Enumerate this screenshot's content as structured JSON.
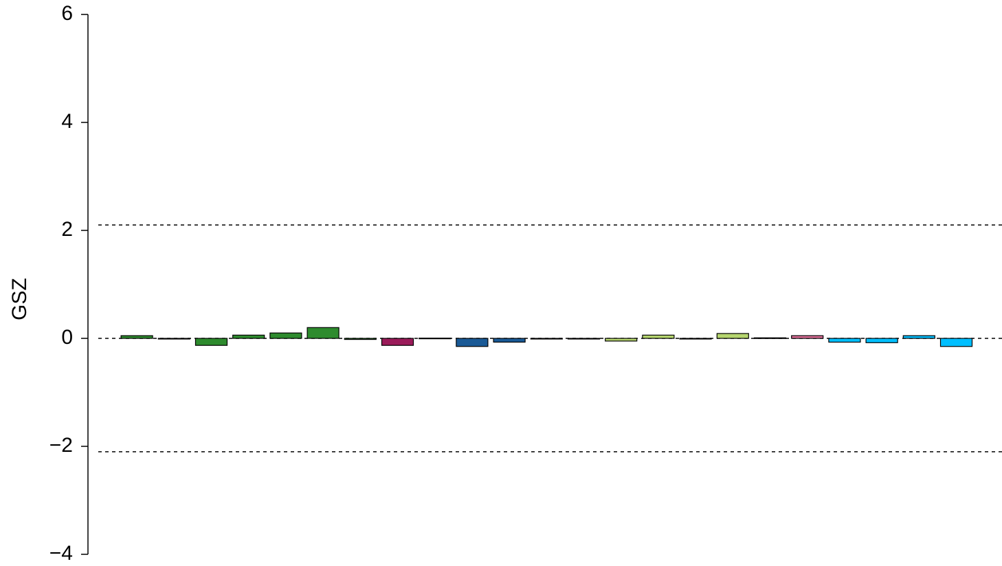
{
  "chart_data": {
    "type": "bar",
    "y_label": "GSZ",
    "categories": [
      null,
      null,
      null,
      null,
      null,
      null,
      null,
      null,
      null,
      null,
      null,
      null,
      null,
      null,
      null,
      null,
      null,
      null,
      null,
      null,
      null,
      null,
      null
    ],
    "values": [
      0.05,
      -0.01,
      -0.13,
      0.06,
      0.1,
      0.2,
      -0.02,
      -0.13,
      0.005,
      -0.15,
      -0.07,
      -0.01,
      -0.01,
      -0.05,
      0.06,
      -0.01,
      0.09,
      0.01,
      0.05,
      -0.07,
      -0.08,
      0.05,
      -0.15
    ],
    "colors": [
      "#2e8b2e",
      "#2e8b2e",
      "#2e8b2e",
      "#2e8b2e",
      "#2e8b2e",
      "#2e8b2e",
      "#2e8b2e",
      "#9b1b5a",
      "#9b1b5a",
      "#1a5a96",
      "#1a5a96",
      "#1a5a96",
      "#1a5a96",
      "#b5d56e",
      "#b5d56e",
      "#b5d56e",
      "#b5d56e",
      "#b5d56e",
      "#e0709a",
      "#00bfff",
      "#00bfff",
      "#00bfff",
      "#00bfff"
    ],
    "ylim": [
      -4,
      6
    ],
    "yticks": [
      {
        "value": -4,
        "label": "−4"
      },
      {
        "value": -2,
        "label": "−2"
      },
      0,
      2,
      4,
      6
    ],
    "reference_lines": [
      2.1,
      0,
      -2.1
    ]
  }
}
